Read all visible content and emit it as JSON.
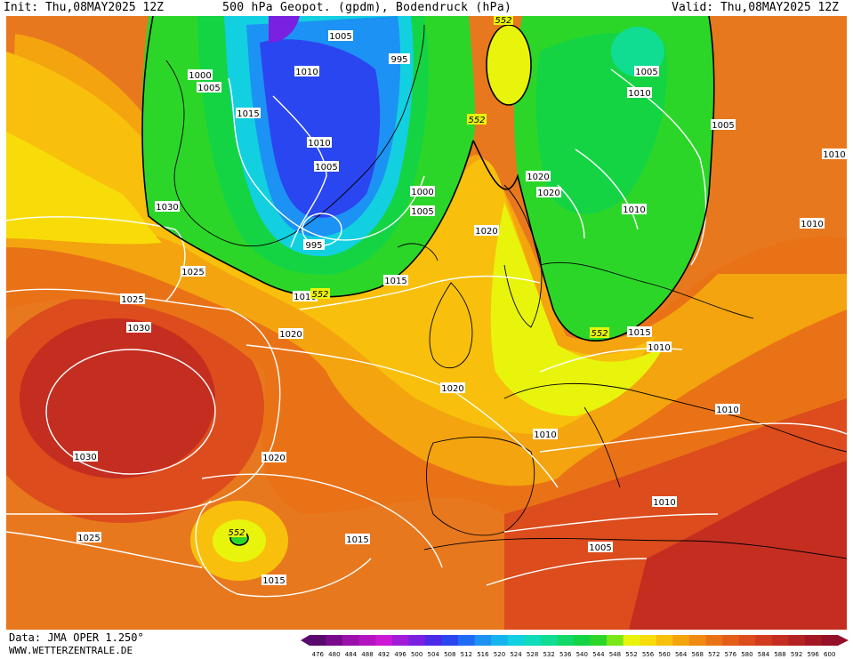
{
  "header": {
    "init": "Init: Thu,08MAY2025 12Z",
    "title": "500 hPa Geopot. (gpdm), Bodendruck (hPa)",
    "valid": "Valid: Thu,08MAY2025 12Z"
  },
  "footer": {
    "data": "Data: JMA OPER 1.250°",
    "site": "WWW.WETTERZENTRALE.DE"
  },
  "colors": {
    "background_map": "#e8781e",
    "land_outline": "#000000",
    "isobar": "#ffffff",
    "contour_552": "#000000"
  },
  "isobar_labels": {
    "p995": "995",
    "p1000": "1000",
    "p1005": "1005",
    "p1010": "1010",
    "p1015": "1015",
    "p1020": "1020",
    "p1025": "1025",
    "p1030": "1030"
  },
  "geopot_labels": {
    "g552": "552"
  },
  "color_scale": {
    "values": [
      "476",
      "480",
      "484",
      "488",
      "492",
      "496",
      "500",
      "504",
      "508",
      "512",
      "516",
      "520",
      "524",
      "528",
      "532",
      "536",
      "540",
      "544",
      "548",
      "552",
      "556",
      "560",
      "564",
      "568",
      "572",
      "576",
      "580",
      "584",
      "588",
      "592",
      "596",
      "600"
    ],
    "colors": [
      "#5a0a6e",
      "#7a0a8c",
      "#9a10a8",
      "#b414c0",
      "#cc18d4",
      "#a21cd8",
      "#7a20e0",
      "#4c2ae8",
      "#2a46f0",
      "#1e6cf4",
      "#1c92f4",
      "#16b4ee",
      "#12d0e0",
      "#10dcbc",
      "#10dc92",
      "#12d868",
      "#14d444",
      "#2cd628",
      "#7ae818",
      "#e8f40c",
      "#f8dc0a",
      "#f8c00c",
      "#f4a40e",
      "#f08a12",
      "#ea7216",
      "#e45e1a",
      "#dc4c1c",
      "#d23c1e",
      "#c42e20",
      "#b42222",
      "#a41824",
      "#941026"
    ]
  }
}
